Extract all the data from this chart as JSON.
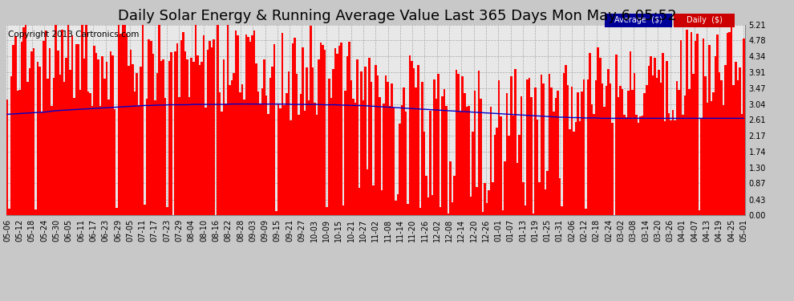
{
  "title": "Daily Solar Energy & Running Average Value Last 365 Days Mon May 6 05:52",
  "copyright": "Copyright 2013 Cartronics.com",
  "bar_color": "#ff0000",
  "avg_line_color": "#0000cc",
  "background_color": "#c8c8c8",
  "plot_bg_color": "#e8e8e8",
  "grid_color": "#aaaaaa",
  "ylim": [
    0.0,
    5.21
  ],
  "yticks": [
    0.0,
    0.43,
    0.87,
    1.3,
    1.74,
    2.17,
    2.61,
    3.04,
    3.47,
    3.91,
    4.34,
    4.78,
    5.21
  ],
  "legend_avg_color": "#000099",
  "legend_daily_color": "#cc0000",
  "title_fontsize": 13,
  "copyright_fontsize": 7.5,
  "tick_fontsize": 7,
  "xtick_labels": [
    "05-06",
    "05-12",
    "05-18",
    "05-24",
    "05-30",
    "06-05",
    "06-11",
    "06-17",
    "06-23",
    "06-29",
    "07-05",
    "07-11",
    "07-17",
    "07-23",
    "07-29",
    "08-04",
    "08-10",
    "08-16",
    "08-22",
    "08-28",
    "09-03",
    "09-09",
    "09-15",
    "09-21",
    "09-27",
    "10-03",
    "10-09",
    "10-15",
    "10-21",
    "10-27",
    "11-02",
    "11-08",
    "11-14",
    "11-20",
    "11-26",
    "12-02",
    "12-08",
    "12-14",
    "12-20",
    "12-26",
    "01-01",
    "01-07",
    "01-13",
    "01-19",
    "01-25",
    "01-31",
    "02-06",
    "02-12",
    "02-18",
    "02-24",
    "03-02",
    "03-08",
    "03-14",
    "03-20",
    "03-26",
    "04-01",
    "04-07",
    "04-13",
    "04-19",
    "04-25",
    "05-01"
  ],
  "avg_points": [
    2.76,
    2.77,
    2.78,
    2.79,
    2.8,
    2.81,
    2.82,
    2.84,
    2.86,
    2.87,
    2.88,
    2.89,
    2.9,
    2.91,
    2.92,
    2.93,
    2.94,
    2.95,
    2.96,
    2.97,
    2.98,
    2.99,
    3.0,
    3.0,
    3.01,
    3.01,
    3.02,
    3.02,
    3.02,
    3.02,
    3.03,
    3.03,
    3.03,
    3.03,
    3.03,
    3.03,
    3.04,
    3.04,
    3.04,
    3.04,
    3.04,
    3.04,
    3.04,
    3.04,
    3.04,
    3.04,
    3.03,
    3.03,
    3.03,
    3.03,
    3.03,
    3.02,
    3.02,
    3.02,
    3.01,
    3.01,
    3.0,
    3.0,
    2.99,
    2.98,
    2.97,
    2.96,
    2.95,
    2.94,
    2.93,
    2.92,
    2.91,
    2.9,
    2.89,
    2.88,
    2.87,
    2.86,
    2.85,
    2.84,
    2.83,
    2.82,
    2.81,
    2.8,
    2.79,
    2.78,
    2.77,
    2.76,
    2.75,
    2.74,
    2.73,
    2.72,
    2.71,
    2.7,
    2.69,
    2.68,
    2.68,
    2.67,
    2.67,
    2.66,
    2.66,
    2.66,
    2.65,
    2.65,
    2.65,
    2.65,
    2.65,
    2.65,
    2.65,
    2.65,
    2.65,
    2.65,
    2.65,
    2.65,
    2.65,
    2.65,
    2.65,
    2.65,
    2.65,
    2.65,
    2.65,
    2.65,
    2.65,
    2.65,
    2.65,
    2.65
  ]
}
